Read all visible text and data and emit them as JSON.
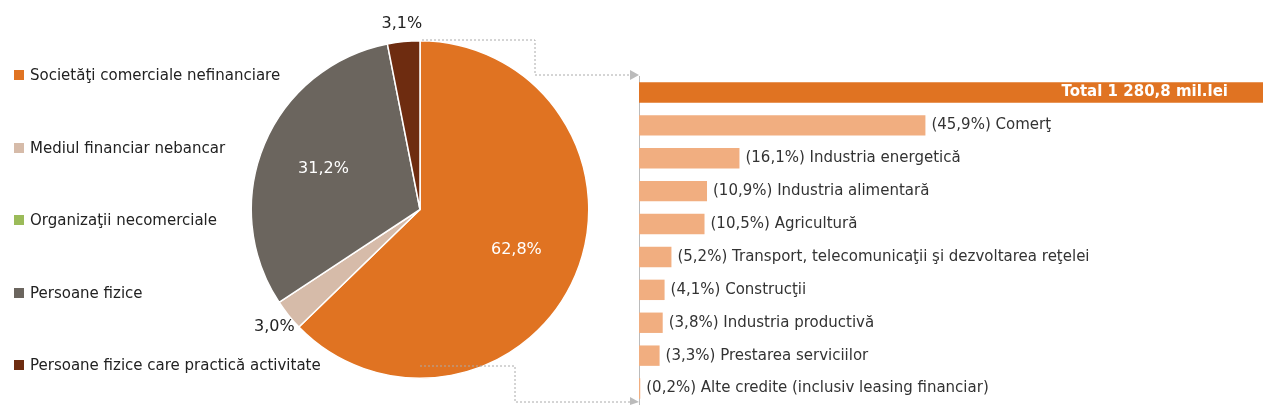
{
  "chart_data": [
    {
      "type": "pie",
      "categories": [
        "Societăţi comerciale nefinanciare",
        "Mediul financiar nebancar",
        "Organizaţii necomerciale",
        "Persoane fizice",
        "Persoane fizice care practică activitate"
      ],
      "values": [
        62.8,
        3.0,
        0,
        31.2,
        3.1
      ],
      "colors": [
        "#e07322",
        "#d6bba9",
        "#9bbb59",
        "#6b655e",
        "#6e2c10"
      ],
      "value_labels": [
        "62,8%",
        "3,0%",
        null,
        "31,2%",
        "3,1%"
      ],
      "legend": "left"
    },
    {
      "type": "bar",
      "orientation": "horizontal",
      "tick_labels": false,
      "categories": [
        "Total 1 280,8 mil.lei",
        "Comerţ",
        "Industria energetică",
        "Industria alimentară",
        "Agricultură",
        "Transport, telecomunicaţii şi dezvoltarea reţelei",
        "Construcţii",
        "Industria productivă",
        "Prestarea serviciilor",
        "Alte credite (inclusiv leasing financiar)"
      ],
      "values": [
        100,
        45.9,
        16.1,
        10.9,
        10.5,
        5.2,
        4.1,
        3.8,
        3.3,
        0.2
      ],
      "value_labels": [
        null,
        "(45,9%)",
        "(16,1%)",
        "(10,9%)",
        "(10,5%)",
        "(5,2%)",
        "(4,1%)",
        "(3,8%)",
        "(3,3%)",
        "(0,2%)"
      ],
      "colors": [
        "#e07322",
        "#f1ae80",
        "#f1ae80",
        "#f1ae80",
        "#f1ae80",
        "#f1ae80",
        "#f1ae80",
        "#f1ae80",
        "#f1ae80",
        "#f1ae80"
      ]
    }
  ]
}
